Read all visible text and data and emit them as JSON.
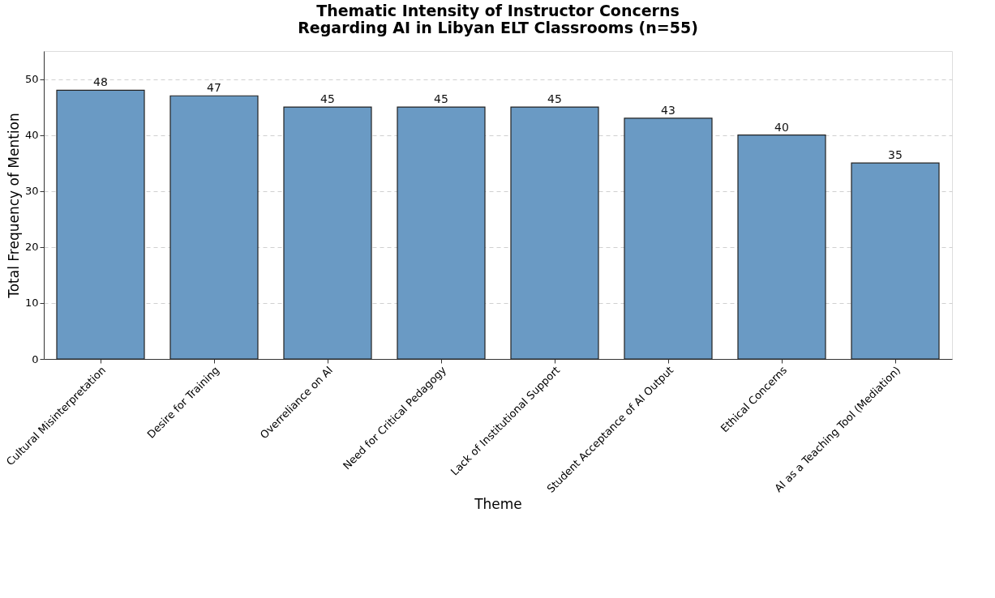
{
  "chart_data": {
    "type": "bar",
    "title": "Thematic Intensity of Instructor Concerns\nRegarding AI in Libyan ELT Classrooms (n=55)",
    "xlabel": "Theme",
    "ylabel": "Total Frequency of Mention",
    "categories": [
      "Cultural Misinterpretation",
      "Desire for Training",
      "Overreliance on AI",
      "Need for Critical Pedagogy",
      "Lack of Institutional Support",
      "Student Acceptance of AI Output",
      "Ethical Concerns",
      "AI as a Teaching Tool (Mediation)"
    ],
    "values": [
      48,
      47,
      45,
      45,
      45,
      43,
      40,
      35
    ],
    "color": "#6a9ac4",
    "ylim": [
      0,
      55
    ],
    "yticks": [
      0,
      10,
      20,
      30,
      40,
      50
    ],
    "grid": "y",
    "data_labels": true
  }
}
